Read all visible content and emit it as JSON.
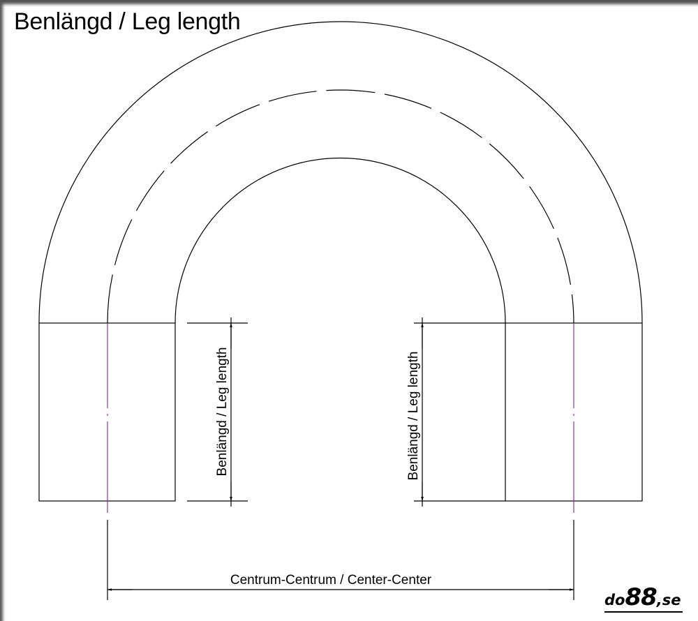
{
  "title": "Benlängd / Leg length",
  "labels": {
    "leg_left": "Benlängd / Leg length",
    "leg_right": "Benlängd / Leg length",
    "center_center": "Centrum-Centrum / Center-Center"
  },
  "logo": {
    "prefix": "do",
    "number": "88",
    "suffix": ",se"
  },
  "colors": {
    "line": "#000000",
    "centerline": "#9b30b0"
  }
}
